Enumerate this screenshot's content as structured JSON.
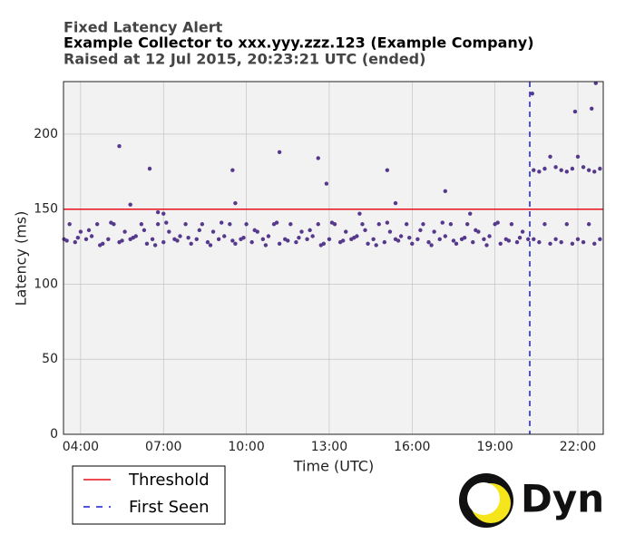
{
  "chart_data": {
    "type": "scatter",
    "title": "Fixed Latency Alert",
    "subtitle": "Example Collector to xxx.yyy.zzz.123 (Example Company)",
    "status": "Raised at 12 Jul 2015, 20:23:21 UTC (ended)",
    "x_label": "Time (UTC)",
    "y_label": "Latency (ms)",
    "xlim": [
      3.38,
      22.92
    ],
    "ylim": [
      0,
      235
    ],
    "xticks": [
      {
        "value": 4,
        "label": "04:00"
      },
      {
        "value": 7,
        "label": "07:00"
      },
      {
        "value": 10,
        "label": "10:00"
      },
      {
        "value": 13,
        "label": "13:00"
      },
      {
        "value": 16,
        "label": "16:00"
      },
      {
        "value": 19,
        "label": "19:00"
      },
      {
        "value": 22,
        "label": "22:00"
      }
    ],
    "yticks": [
      0,
      50,
      100,
      150,
      200
    ],
    "grid": true,
    "threshold": {
      "label": "Threshold",
      "value": 150,
      "color": "#e8101a"
    },
    "first_seen": {
      "label": "First Seen",
      "x": 20.26,
      "color": "#1a1ad8"
    },
    "series": [
      {
        "color": "#56398c",
        "x": [
          3.4,
          3.6,
          3.8,
          4.0,
          4.2,
          4.4,
          4.6,
          4.8,
          5.0,
          5.2,
          5.4,
          5.6,
          5.8,
          6.0,
          6.2,
          6.4,
          6.6,
          6.8,
          7.0,
          7.2,
          7.4,
          7.6,
          7.8,
          8.0,
          8.2,
          8.4,
          8.6,
          8.8,
          9.0,
          9.2,
          9.4,
          9.6,
          9.8,
          10.0,
          10.2,
          10.4,
          10.6,
          10.8,
          11.0,
          11.2,
          11.4,
          11.6,
          11.8,
          12.0,
          12.2,
          12.4,
          12.6,
          12.8,
          13.0,
          13.2,
          13.4,
          13.6,
          13.8,
          14.0,
          14.2,
          14.4,
          14.6,
          14.8,
          15.0,
          15.2,
          15.4,
          15.6,
          15.8,
          16.0,
          16.2,
          16.4,
          16.6,
          16.8,
          17.0,
          17.2,
          17.4,
          17.6,
          17.8,
          18.0,
          18.2,
          18.4,
          18.6,
          18.8,
          19.0,
          19.2,
          19.4,
          19.6,
          19.8,
          20.0,
          20.2,
          3.5,
          3.9,
          4.3,
          4.7,
          5.1,
          5.5,
          5.9,
          6.3,
          6.7,
          7.1,
          7.5,
          7.9,
          8.3,
          8.7,
          9.1,
          9.5,
          9.9,
          10.3,
          10.7,
          11.1,
          11.5,
          11.9,
          12.3,
          12.7,
          13.1,
          13.5,
          13.9,
          14.3,
          14.7,
          15.1,
          15.5,
          15.9,
          16.3,
          16.7,
          17.1,
          17.5,
          17.9,
          18.3,
          18.7,
          19.1,
          19.5,
          19.9,
          20.4,
          20.6,
          20.8,
          21.0,
          21.2,
          21.4,
          21.6,
          21.8,
          22.0,
          22.2,
          22.4,
          22.6,
          22.8,
          20.4,
          20.6,
          20.8,
          21.0,
          21.2,
          21.4,
          21.6,
          21.8,
          22.0,
          22.2,
          22.4,
          22.6,
          22.8,
          5.4,
          5.8,
          6.5,
          6.8,
          7.0,
          9.5,
          9.6,
          11.2,
          12.6,
          12.9,
          14.1,
          15.1,
          15.4,
          17.2,
          18.1,
          20.35,
          21.9,
          22.5,
          22.65
        ],
        "values": [
          130,
          140,
          128,
          135,
          130,
          132,
          140,
          127,
          130,
          140,
          128,
          135,
          130,
          132,
          140,
          127,
          130,
          140,
          128,
          135,
          130,
          132,
          140,
          127,
          130,
          140,
          128,
          135,
          130,
          132,
          140,
          127,
          130,
          140,
          128,
          135,
          130,
          132,
          140,
          127,
          130,
          140,
          128,
          135,
          130,
          132,
          140,
          127,
          130,
          140,
          128,
          135,
          130,
          132,
          140,
          127,
          130,
          140,
          128,
          135,
          130,
          132,
          140,
          127,
          130,
          140,
          128,
          135,
          130,
          132,
          140,
          127,
          130,
          140,
          128,
          135,
          130,
          132,
          140,
          127,
          130,
          140,
          128,
          135,
          130,
          129,
          131,
          136,
          126,
          141,
          129,
          131,
          136,
          126,
          141,
          129,
          131,
          136,
          126,
          141,
          129,
          131,
          136,
          126,
          141,
          129,
          131,
          136,
          126,
          141,
          129,
          131,
          136,
          126,
          141,
          129,
          131,
          136,
          126,
          141,
          129,
          131,
          136,
          126,
          141,
          129,
          131,
          176,
          175,
          177,
          185,
          178,
          176,
          175,
          177,
          185,
          178,
          176,
          175,
          177,
          130,
          128,
          140,
          127,
          130,
          128,
          140,
          127,
          130,
          128,
          140,
          127,
          130,
          192,
          153,
          177,
          148,
          147,
          176,
          154,
          188,
          184,
          167,
          147,
          176,
          154,
          162,
          147,
          227,
          215,
          217,
          234
        ]
      }
    ],
    "logo": "Dyn"
  }
}
